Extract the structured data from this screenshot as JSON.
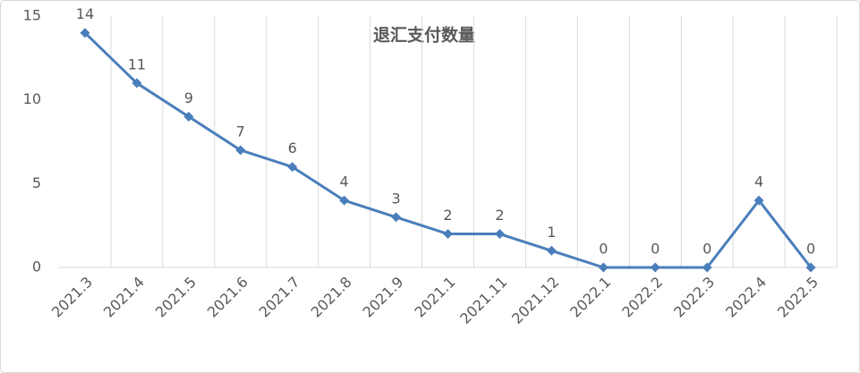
{
  "chart_data": {
    "type": "line",
    "title": "退汇支付数量",
    "categories": [
      "2021.3",
      "2021.4",
      "2021.5",
      "2021.6",
      "2021.7",
      "2021.8",
      "2021.9",
      "2021.1",
      "2021.11",
      "2021.12",
      "2022.1",
      "2022.2",
      "2022.3",
      "2022.4",
      "2022.5"
    ],
    "values": [
      14,
      11,
      9,
      7,
      6,
      4,
      3,
      2,
      2,
      1,
      0,
      0,
      0,
      4,
      0
    ],
    "color": "#4a7ebb",
    "ylim": [
      0,
      15
    ],
    "yticks": [
      0,
      5,
      10,
      15
    ],
    "grid": "x",
    "data_labels": true
  }
}
